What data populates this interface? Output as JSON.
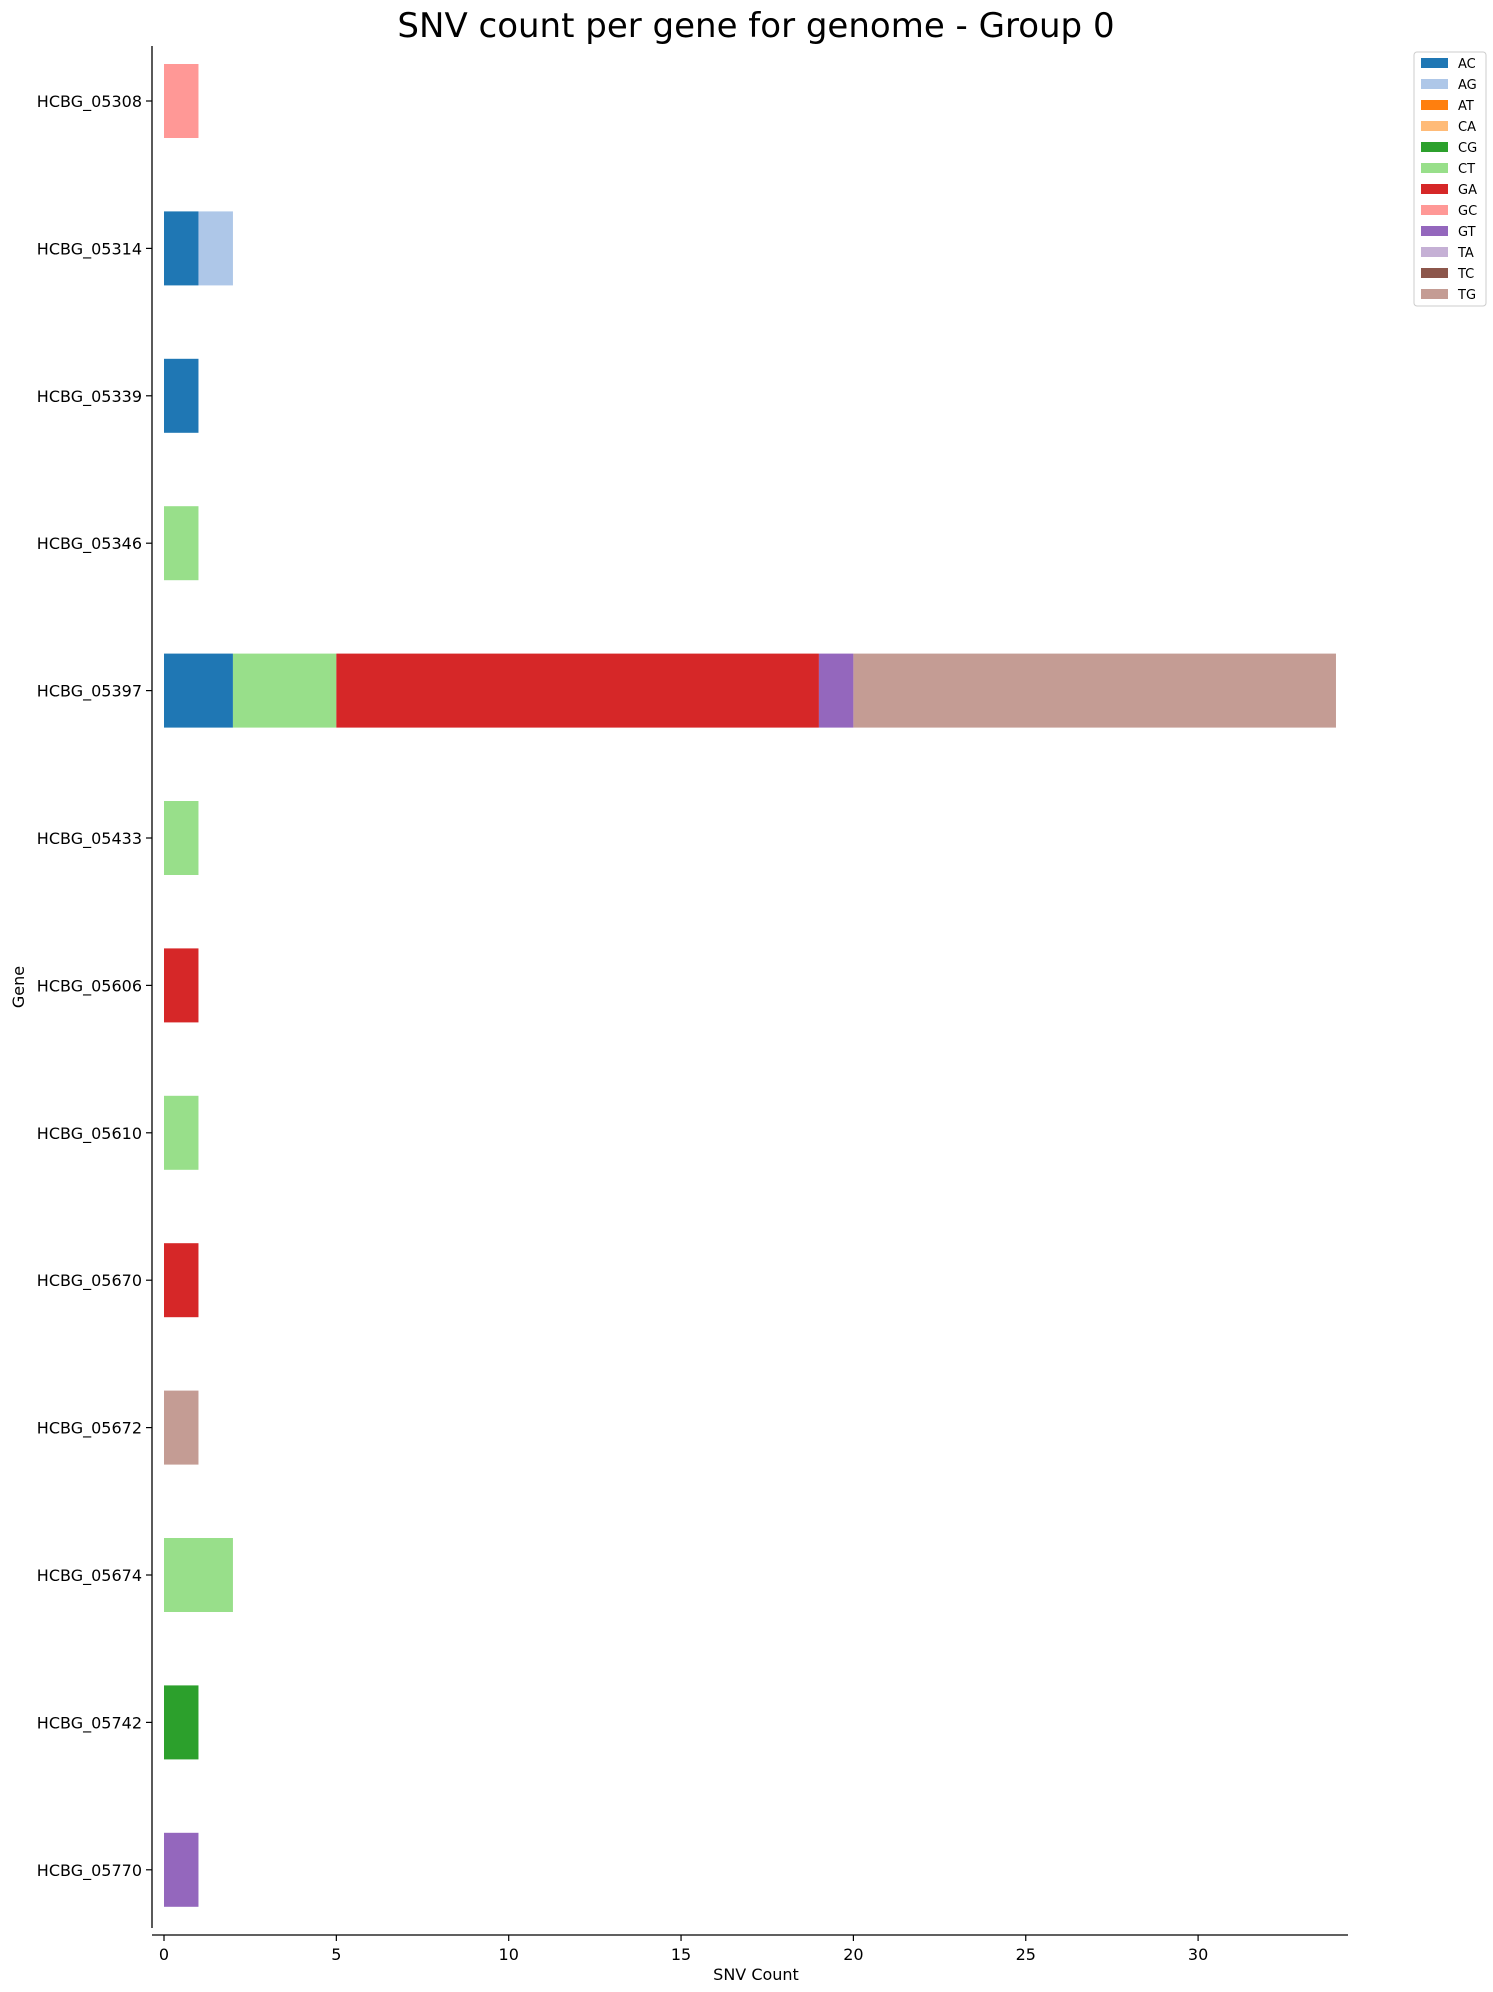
{
  "chart_data": {
    "type": "bar",
    "orientation": "horizontal",
    "stacked": true,
    "title": "SNV count per gene for genome - Group 0",
    "xlabel": "SNV Count",
    "ylabel": "Gene",
    "xlim": [
      0,
      34.3
    ],
    "xticks": [
      0,
      5,
      10,
      15,
      20,
      25,
      30
    ],
    "grid": false,
    "legend_position": "top-right (outside plot)",
    "categories": [
      "HCBG_05308",
      "HCBG_05314",
      "HCBG_05339",
      "HCBG_05346",
      "HCBG_05397",
      "HCBG_05433",
      "HCBG_05606",
      "HCBG_05610",
      "HCBG_05670",
      "HCBG_05672",
      "HCBG_05674",
      "HCBG_05742",
      "HCBG_05770"
    ],
    "series": [
      {
        "name": "AC",
        "color": "#1f77b4",
        "values": [
          0,
          1,
          1,
          0,
          2,
          0,
          0,
          0,
          0,
          0,
          0,
          0,
          0
        ]
      },
      {
        "name": "AG",
        "color": "#aec7e8",
        "values": [
          0,
          1,
          0,
          0,
          0,
          0,
          0,
          0,
          0,
          0,
          0,
          0,
          0
        ]
      },
      {
        "name": "AT",
        "color": "#ff7f0e",
        "values": [
          0,
          0,
          0,
          0,
          0,
          0,
          0,
          0,
          0,
          0,
          0,
          0,
          0
        ]
      },
      {
        "name": "CA",
        "color": "#ffbb78",
        "values": [
          0,
          0,
          0,
          0,
          0,
          0,
          0,
          0,
          0,
          0,
          0,
          0,
          0
        ]
      },
      {
        "name": "CG",
        "color": "#2ca02c",
        "values": [
          0,
          0,
          0,
          0,
          0,
          0,
          0,
          0,
          0,
          0,
          0,
          1,
          0
        ]
      },
      {
        "name": "CT",
        "color": "#98df8a",
        "values": [
          0,
          0,
          0,
          1,
          3,
          1,
          0,
          1,
          0,
          0,
          2,
          0,
          0
        ]
      },
      {
        "name": "GA",
        "color": "#d62728",
        "values": [
          0,
          0,
          0,
          0,
          14,
          0,
          1,
          0,
          1,
          0,
          0,
          0,
          0
        ]
      },
      {
        "name": "GC",
        "color": "#ff9896",
        "values": [
          1,
          0,
          0,
          0,
          0,
          0,
          0,
          0,
          0,
          0,
          0,
          0,
          0
        ]
      },
      {
        "name": "GT",
        "color": "#9467bd",
        "values": [
          0,
          0,
          0,
          0,
          1,
          0,
          0,
          0,
          0,
          0,
          0,
          0,
          1
        ]
      },
      {
        "name": "TA",
        "color": "#c5b0d5",
        "values": [
          0,
          0,
          0,
          0,
          0,
          0,
          0,
          0,
          0,
          0,
          0,
          0,
          0
        ]
      },
      {
        "name": "TC",
        "color": "#8c564b",
        "values": [
          0,
          0,
          0,
          0,
          0,
          0,
          0,
          0,
          0,
          0,
          0,
          0,
          0
        ]
      },
      {
        "name": "TG",
        "color": "#c49c94",
        "values": [
          0,
          0,
          0,
          0,
          14,
          0,
          0,
          0,
          0,
          1,
          0,
          0,
          0
        ]
      }
    ]
  }
}
